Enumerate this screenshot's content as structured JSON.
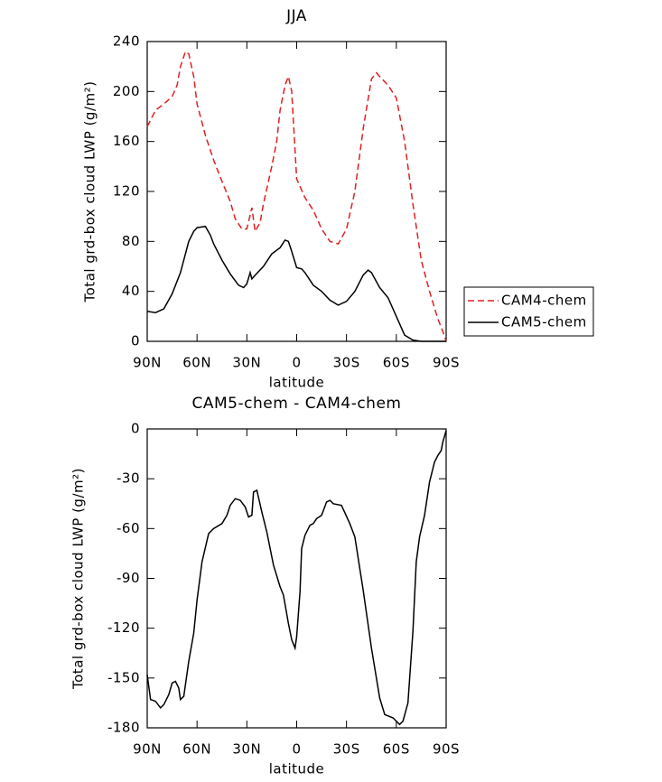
{
  "chart_data": [
    {
      "type": "line",
      "title": "JJA",
      "xlabel": "latitude",
      "ylabel": "Total grd-box cloud LWP (g/m²)",
      "xlim": [
        90,
        -90
      ],
      "ylim": [
        0,
        240
      ],
      "xticks": [
        {
          "value": 90,
          "label": "90N"
        },
        {
          "value": 60,
          "label": "60N"
        },
        {
          "value": 30,
          "label": "30N"
        },
        0,
        {
          "value": -30,
          "label": "30S"
        },
        {
          "value": -60,
          "label": "60S"
        },
        {
          "value": -90,
          "label": "90S"
        }
      ],
      "yticks": [
        0,
        40,
        80,
        120,
        160,
        200,
        240
      ],
      "legend": "right",
      "series": [
        {
          "name": "CAM4-chem",
          "color": "#e02020",
          "line_style": "dashed",
          "x": [
            90,
            85,
            80,
            75,
            72,
            70,
            67,
            65,
            62,
            60,
            55,
            50,
            45,
            40,
            37,
            33,
            30,
            27,
            25,
            22,
            20,
            15,
            12,
            10,
            7,
            5,
            3,
            0,
            -5,
            -10,
            -15,
            -20,
            -25,
            -30,
            -35,
            -40,
            -45,
            -48,
            -50,
            -55,
            -60,
            -65,
            -70,
            -75,
            -80,
            -85,
            -88,
            -90
          ],
          "values": [
            172,
            185,
            190,
            196,
            205,
            220,
            232,
            230,
            212,
            190,
            165,
            145,
            128,
            112,
            98,
            90,
            90,
            107,
            88,
            95,
            110,
            140,
            160,
            185,
            205,
            212,
            200,
            130,
            115,
            105,
            90,
            80,
            78,
            90,
            120,
            170,
            210,
            215,
            212,
            205,
            195,
            160,
            110,
            65,
            40,
            18,
            8,
            0
          ]
        },
        {
          "name": "CAM5-chem",
          "color": "#000000",
          "line_style": "solid",
          "x": [
            90,
            85,
            80,
            75,
            70,
            65,
            62,
            60,
            55,
            52,
            50,
            45,
            40,
            35,
            32,
            30,
            28,
            27,
            25,
            20,
            15,
            10,
            7,
            5,
            3,
            0,
            -3,
            -5,
            -10,
            -15,
            -20,
            -25,
            -30,
            -35,
            -40,
            -43,
            -45,
            -50,
            -55,
            -60,
            -65,
            -70,
            -75,
            -80,
            -90
          ],
          "values": [
            24,
            23,
            26,
            38,
            55,
            80,
            88,
            91,
            92,
            85,
            78,
            65,
            54,
            45,
            43,
            46,
            55,
            50,
            53,
            60,
            70,
            75,
            81,
            80,
            72,
            59,
            58,
            55,
            45,
            40,
            33,
            29,
            32,
            40,
            53,
            57,
            55,
            43,
            35,
            20,
            5,
            1,
            0,
            0,
            0
          ]
        }
      ]
    },
    {
      "type": "line",
      "title": "CAM5-chem - CAM4-chem",
      "xlabel": "latitude",
      "ylabel": "Total grd-box cloud LWP (g/m²)",
      "xlim": [
        90,
        -90
      ],
      "ylim": [
        -180,
        0
      ],
      "xticks": [
        {
          "value": 90,
          "label": "90N"
        },
        {
          "value": 60,
          "label": "60N"
        },
        {
          "value": 30,
          "label": "30N"
        },
        0,
        {
          "value": -30,
          "label": "30S"
        },
        {
          "value": -60,
          "label": "60S"
        },
        {
          "value": -90,
          "label": "90S"
        }
      ],
      "yticks": [
        -180,
        -150,
        -120,
        -90,
        -60,
        -30,
        0
      ],
      "series": [
        {
          "color": "#000000",
          "line_style": "solid",
          "x": [
            90,
            88,
            85,
            82,
            80,
            77,
            75,
            73,
            71,
            70,
            68,
            65,
            62,
            60,
            57,
            53,
            50,
            45,
            42,
            40,
            37,
            34,
            31,
            29,
            27,
            26,
            24,
            21,
            18,
            14,
            10,
            8,
            5,
            3,
            1,
            0,
            -2,
            -3,
            -5,
            -8,
            -10,
            -12,
            -15,
            -18,
            -20,
            -22,
            -27,
            -32,
            -35,
            -40,
            -45,
            -50,
            -53,
            -58,
            -60,
            -62,
            -64,
            -67,
            -70,
            -72,
            -74,
            -77,
            -80,
            -83,
            -85,
            -87,
            -88,
            -90
          ],
          "values": [
            -148,
            -163,
            -164,
            -168,
            -166,
            -160,
            -153,
            -152,
            -156,
            -163,
            -161,
            -140,
            -123,
            -103,
            -80,
            -63,
            -60,
            -57,
            -52,
            -46,
            -42,
            -43,
            -47,
            -53,
            -52,
            -38,
            -37,
            -50,
            -62,
            -82,
            -95,
            -100,
            -117,
            -127,
            -132,
            -125,
            -98,
            -72,
            -64,
            -58,
            -57,
            -54,
            -52,
            -44,
            -43,
            -45,
            -46,
            -57,
            -65,
            -97,
            -132,
            -162,
            -172,
            -174,
            -176,
            -178,
            -176,
            -165,
            -122,
            -80,
            -65,
            -52,
            -32,
            -20,
            -16,
            -13,
            -8,
            -1
          ]
        }
      ]
    }
  ]
}
